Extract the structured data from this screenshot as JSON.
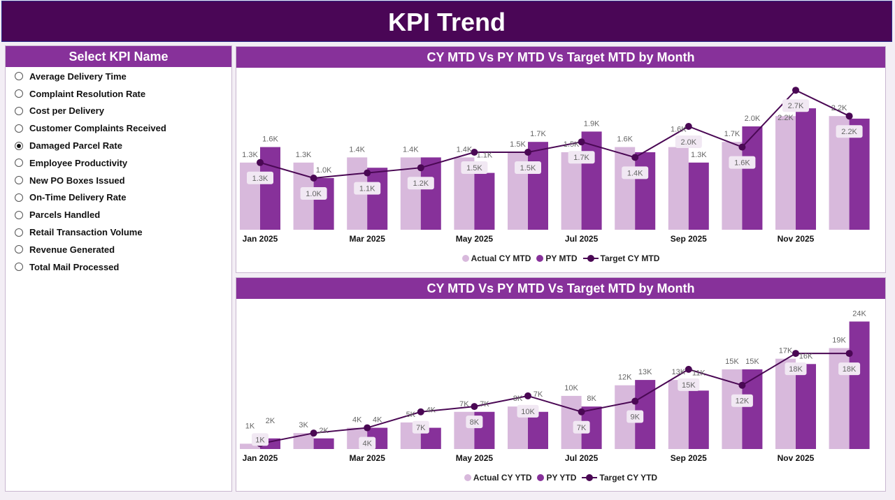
{
  "header": {
    "title": "KPI Trend"
  },
  "slicer": {
    "title": "Select KPI Name",
    "selected": "Damaged Parcel Rate",
    "items": [
      "Average Delivery Time",
      "Complaint Resolution Rate",
      "Cost per Delivery",
      "Customer Complaints Received",
      "Damaged Parcel Rate",
      "Employee Productivity",
      "New PO Boxes Issued",
      "On-Time Delivery Rate",
      "Parcels Handled",
      "Retail Transaction Volume",
      "Revenue Generated",
      "Total Mail Processed"
    ]
  },
  "colors": {
    "actual": "#d8b9dc",
    "py": "#87319a",
    "target": "#4a0854",
    "header": "#4a0656"
  },
  "chart_data": [
    {
      "type": "bar+line",
      "title": "CY MTD Vs PY MTD Vs Target MTD by Month",
      "categories": [
        "Jan 2025",
        "Feb 2025",
        "Mar 2025",
        "Apr 2025",
        "May 2025",
        "Jun 2025",
        "Jul 2025",
        "Aug 2025",
        "Sep 2025",
        "Oct 2025",
        "Nov 2025",
        "Dec 2025"
      ],
      "tick_labels": [
        "Jan 2025",
        "",
        "Mar 2025",
        "",
        "May 2025",
        "",
        "Jul 2025",
        "",
        "Sep 2025",
        "",
        "Nov 2025",
        ""
      ],
      "unit": "K",
      "decimals": 1,
      "ylim": [
        0,
        3.0
      ],
      "series": [
        {
          "name": "Actual CY MTD",
          "kind": "bar",
          "values": [
            1.3,
            1.3,
            1.4,
            1.4,
            1.4,
            1.5,
            1.5,
            1.6,
            1.6,
            1.7,
            2.2,
            2.2
          ],
          "hidden_labels": []
        },
        {
          "name": "PY MTD",
          "kind": "bar",
          "values": [
            1.6,
            1.0,
            1.2,
            1.4,
            1.1,
            1.7,
            1.9,
            1.5,
            1.3,
            2.0,
            2.35,
            2.15
          ],
          "hidden_labels": [
            2,
            3,
            7,
            10,
            11
          ]
        },
        {
          "name": "Target CY MTD",
          "kind": "line",
          "values": [
            1.3,
            1.0,
            1.1,
            1.2,
            1.5,
            1.5,
            1.7,
            1.4,
            2.0,
            1.6,
            2.7,
            2.2
          ],
          "hidden_labels": []
        }
      ]
    },
    {
      "type": "bar+line",
      "title": "CY MTD Vs PY MTD Vs Target MTD by Month",
      "categories": [
        "Jan 2025",
        "Feb 2025",
        "Mar 2025",
        "Apr 2025",
        "May 2025",
        "Jun 2025",
        "Jul 2025",
        "Aug 2025",
        "Sep 2025",
        "Oct 2025",
        "Nov 2025",
        "Dec 2025"
      ],
      "tick_labels": [
        "Jan 2025",
        "",
        "Mar 2025",
        "",
        "May 2025",
        "",
        "Jul 2025",
        "",
        "Sep 2025",
        "",
        "Nov 2025",
        ""
      ],
      "unit": "K",
      "decimals": 0,
      "ylim": [
        0,
        28
      ],
      "series": [
        {
          "name": "Actual CY YTD",
          "kind": "bar",
          "values": [
            1,
            3,
            4,
            5,
            7,
            8,
            10,
            12,
            13,
            15,
            17,
            19
          ],
          "hidden_labels": []
        },
        {
          "name": "PY YTD",
          "kind": "bar",
          "values": [
            2,
            2,
            4,
            4,
            7,
            7,
            8,
            13,
            11,
            15,
            16,
            24
          ],
          "hidden_labels": []
        },
        {
          "name": "Target CY YTD",
          "kind": "line",
          "values": [
            1,
            3,
            4,
            7,
            8,
            10,
            7,
            9,
            15,
            12,
            18,
            18
          ],
          "hidden_labels": [
            1
          ]
        }
      ]
    }
  ]
}
